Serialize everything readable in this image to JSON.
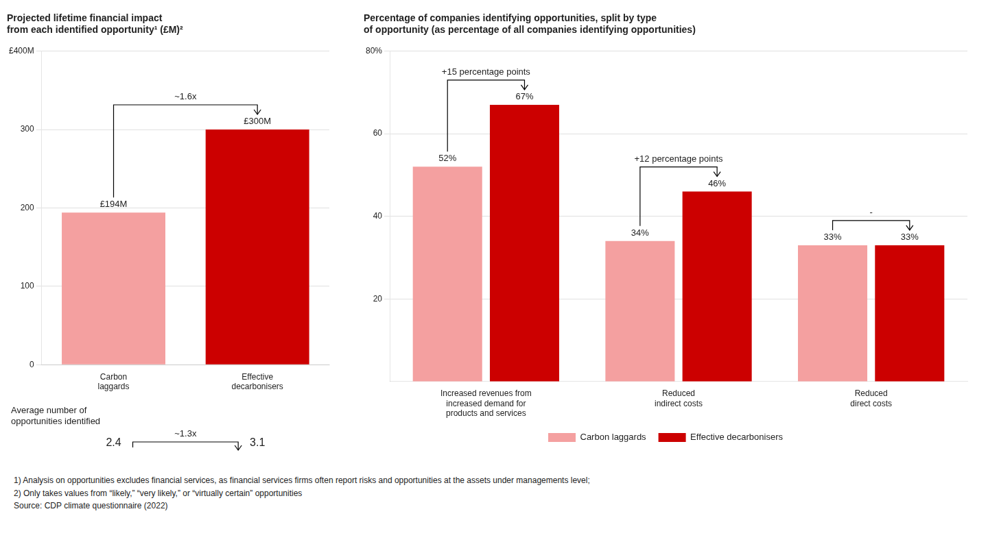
{
  "chart_data": [
    {
      "type": "bar",
      "title": "Projected lifetime financial impact\nfrom each identified opportunity¹ (£M)²",
      "categories": [
        "Carbon\nlaggards",
        "Effective\ndecarbonisers"
      ],
      "values": [
        194,
        300
      ],
      "value_labels": [
        "£194M",
        "£300M"
      ],
      "data_labels": true,
      "colors": [
        "#F4A0A0",
        "#CC0000"
      ],
      "ylim": [
        0,
        400
      ],
      "yticks": [
        0,
        100,
        200,
        300,
        {
          "value": 400,
          "label": "£400M"
        }
      ],
      "grid": true,
      "annotations": [
        "~1.6x"
      ],
      "average_opportunities": {
        "label": "Average number of\nopportunities identified",
        "values": [
          2.4,
          3.1
        ],
        "annotation": "~1.3x"
      }
    },
    {
      "type": "bar",
      "title": "Percentage of companies identifying opportunities, split by type\nof opportunity (as percentage of all companies identifying opportunities)",
      "categories": [
        "Increased revenues from\nincreased demand for\nproducts and services",
        "Reduced\nindirect costs",
        "Reduced\ndirect costs"
      ],
      "series": [
        {
          "name": "Carbon laggards",
          "color": "#F4A0A0",
          "values": [
            52,
            34,
            33
          ],
          "value_labels": [
            "52%",
            "34%",
            "33%"
          ]
        },
        {
          "name": "Effective decarbonisers",
          "color": "#CC0000",
          "values": [
            67,
            46,
            33
          ],
          "value_labels": [
            "67%",
            "46%",
            "33%"
          ]
        }
      ],
      "data_labels": true,
      "ylim": [
        0,
        80
      ],
      "yticks": [
        20,
        40,
        60,
        {
          "value": 80,
          "label": "80%"
        }
      ],
      "grid": true,
      "legend": "bottom",
      "annotations": [
        "+15 percentage points",
        "+12 percentage points",
        "-"
      ]
    }
  ],
  "footnotes": [
    "1) Analysis on opportunities excludes financial services, as financial services firms often report risks and opportunities at the assets under managements level;",
    "2) Only takes values from “likely,” “very likely,” or “virtually certain” opportunities",
    "Source: CDP climate questionnaire (2022)"
  ]
}
